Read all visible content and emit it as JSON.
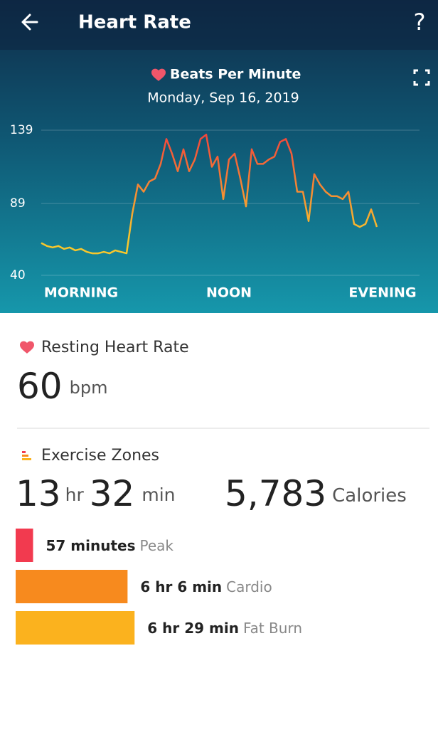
{
  "header": {
    "title": "Heart Rate",
    "help": "?"
  },
  "chart_data": {
    "type": "line",
    "title": "Beats Per Minute",
    "subtitle": "Monday, Sep 16, 2019",
    "categories": [
      null,
      null,
      null,
      null,
      null,
      null,
      null,
      "MORNING",
      null,
      null,
      null,
      null,
      null,
      null,
      null,
      null,
      null,
      null,
      null,
      null,
      null,
      null,
      null,
      null,
      null,
      null,
      null,
      null,
      null,
      null,
      null,
      null,
      null,
      "NOON",
      null,
      null,
      null,
      null,
      null,
      null,
      null,
      null,
      null,
      null,
      null,
      null,
      null,
      null,
      null,
      null,
      null,
      null,
      null,
      null,
      null,
      null,
      null,
      null,
      null,
      null,
      "EVENING"
    ],
    "values": [
      62,
      60,
      59,
      60,
      58,
      59,
      57,
      58,
      56,
      55,
      55,
      56,
      55,
      57,
      56,
      55,
      82,
      102,
      97,
      104,
      106,
      116,
      133,
      123,
      111,
      126,
      111,
      119,
      133,
      136,
      114,
      121,
      92,
      119,
      123,
      106,
      87,
      126,
      116,
      116,
      119,
      121,
      131,
      133,
      123,
      97,
      97,
      77,
      109,
      102,
      97,
      94,
      94,
      92,
      97,
      75,
      73,
      75,
      85,
      73,
      null
    ],
    "colors": {
      "high": "#f2403c",
      "low": "#f8c72c"
    },
    "ylim": [
      40,
      139
    ],
    "yticks": [
      40,
      89,
      139
    ],
    "grid": true
  },
  "resting_heart_rate": {
    "title": "Resting Heart Rate",
    "value": 60,
    "unit": "bpm"
  },
  "exercise_zones": {
    "title": "Exercise Zones",
    "hours": 13,
    "hours_unit": "hr",
    "minutes": 32,
    "minutes_unit": "min",
    "calories": "5,783",
    "calories_unit": "Calories",
    "zones": [
      {
        "name": "Peak",
        "value": 57,
        "value_label": "57 minutes",
        "color": "#f23a4f"
      },
      {
        "name": "Cardio",
        "value": 366,
        "value_label": "6 hr 6 min",
        "color": "#f78a1e"
      },
      {
        "name": "Fat Burn",
        "value": 389,
        "value_label": "6 hr 29 min",
        "color": "#fbb21e"
      }
    ]
  }
}
